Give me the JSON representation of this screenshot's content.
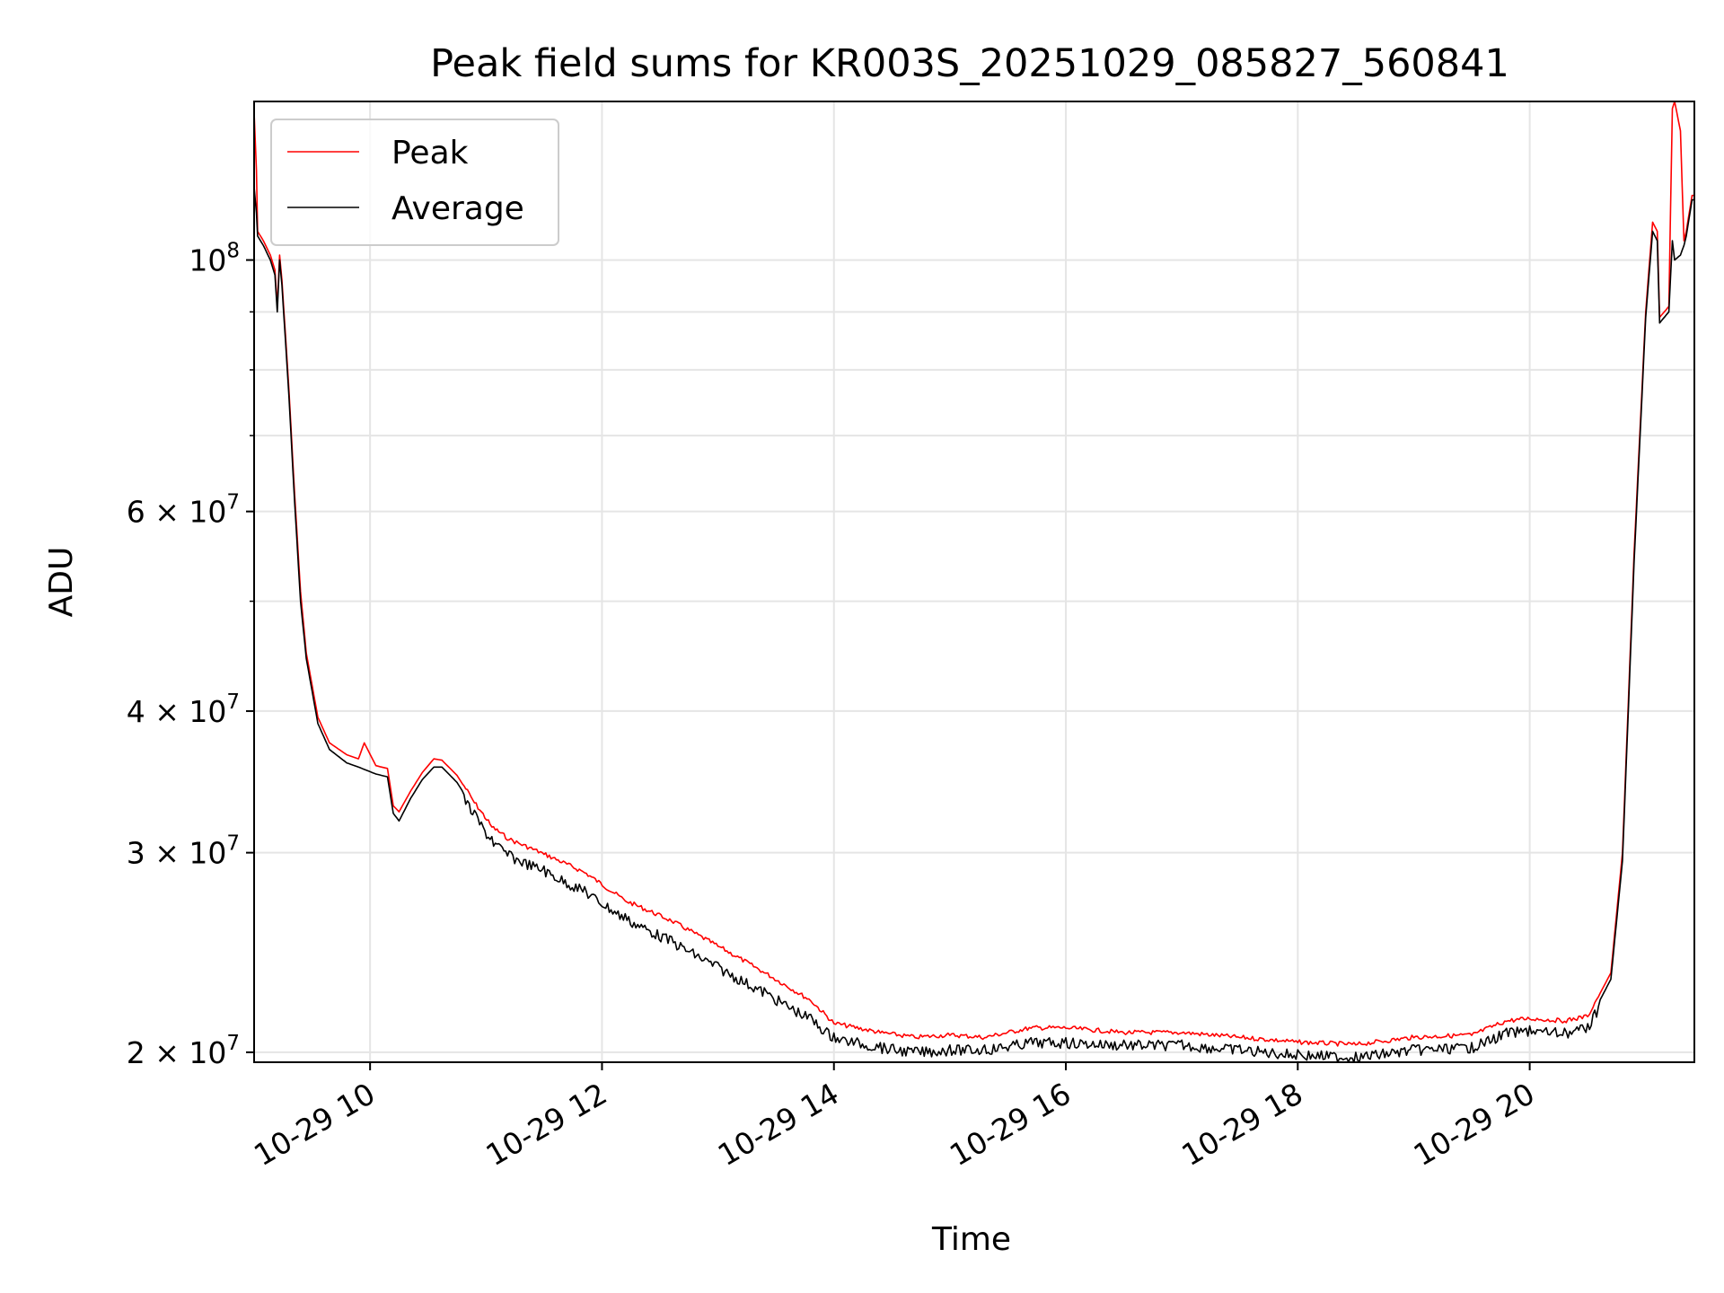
{
  "chart_data": {
    "type": "line",
    "title": "Peak field sums for KR003S_20251029_085827_560841",
    "xlabel": "Time",
    "ylabel": "ADU",
    "yscale": "log",
    "grid": true,
    "legend_position": "top-left",
    "xlim": [
      9.0,
      21.42
    ],
    "ylim": [
      19600000,
      138000000
    ],
    "x_ticks": [
      {
        "value": 10,
        "label": "10-29 10"
      },
      {
        "value": 12,
        "label": "10-29 12"
      },
      {
        "value": 14,
        "label": "10-29 14"
      },
      {
        "value": 16,
        "label": "10-29 16"
      },
      {
        "value": 18,
        "label": "10-29 18"
      },
      {
        "value": 20,
        "label": "10-29 20"
      }
    ],
    "y_major_ticks": [
      {
        "value": 100000000,
        "label": "10",
        "exp": "8",
        "style": "power"
      },
      {
        "value": 60000000,
        "label": "6 × 10",
        "exp": "7",
        "style": "mant"
      },
      {
        "value": 40000000,
        "label": "4 × 10",
        "exp": "7",
        "style": "mant"
      },
      {
        "value": 30000000,
        "label": "3 × 10",
        "exp": "7",
        "style": "mant"
      },
      {
        "value": 20000000,
        "label": "2 × 10",
        "exp": "7",
        "style": "mant"
      }
    ],
    "y_minor_ticks": [
      90000000,
      80000000,
      70000000,
      50000000
    ],
    "series": [
      {
        "name": "Peak",
        "color": "#ff0000",
        "points": [
          [
            9.0,
            135000000
          ],
          [
            9.02,
            120000000
          ],
          [
            9.03,
            106000000
          ],
          [
            9.08,
            104000000
          ],
          [
            9.14,
            101000000
          ],
          [
            9.18,
            98000000
          ],
          [
            9.2,
            91000000
          ],
          [
            9.22,
            101000000
          ],
          [
            9.24,
            96000000
          ],
          [
            9.3,
            77000000
          ],
          [
            9.35,
            62000000
          ],
          [
            9.4,
            51000000
          ],
          [
            9.45,
            45000000
          ],
          [
            9.55,
            39500000
          ],
          [
            9.65,
            37500000
          ],
          [
            9.8,
            36600000
          ],
          [
            9.9,
            36300000
          ],
          [
            9.95,
            37500000
          ],
          [
            10.05,
            35800000
          ],
          [
            10.15,
            35600000
          ],
          [
            10.2,
            33000000
          ],
          [
            10.25,
            32600000
          ],
          [
            10.35,
            34000000
          ],
          [
            10.45,
            35300000
          ],
          [
            10.55,
            36300000
          ],
          [
            10.62,
            36200000
          ],
          [
            10.75,
            35100000
          ],
          [
            10.9,
            33200000
          ],
          [
            11.05,
            31600000
          ],
          [
            11.2,
            30800000
          ],
          [
            11.5,
            29900000
          ],
          [
            11.85,
            28800000
          ],
          [
            12.2,
            27200000
          ],
          [
            12.6,
            26100000
          ],
          [
            13.0,
            24800000
          ],
          [
            13.4,
            23500000
          ],
          [
            13.8,
            22200000
          ],
          [
            14.0,
            21200000
          ],
          [
            14.4,
            20800000
          ],
          [
            14.7,
            20600000
          ],
          [
            15.0,
            20700000
          ],
          [
            15.3,
            20600000
          ],
          [
            15.7,
            21000000
          ],
          [
            16.0,
            21000000
          ],
          [
            16.5,
            20800000
          ],
          [
            17.0,
            20800000
          ],
          [
            17.5,
            20600000
          ],
          [
            18.0,
            20400000
          ],
          [
            18.5,
            20300000
          ],
          [
            19.0,
            20600000
          ],
          [
            19.5,
            20700000
          ],
          [
            19.8,
            21300000
          ],
          [
            20.0,
            21400000
          ],
          [
            20.3,
            21300000
          ],
          [
            20.5,
            21500000
          ],
          [
            20.7,
            23500000
          ],
          [
            20.8,
            30000000
          ],
          [
            20.9,
            55000000
          ],
          [
            21.0,
            90000000
          ],
          [
            21.06,
            108000000
          ],
          [
            21.1,
            106000000
          ],
          [
            21.12,
            89000000
          ],
          [
            21.2,
            91000000
          ],
          [
            21.23,
            136000000
          ],
          [
            21.25,
            138000000
          ],
          [
            21.3,
            130000000
          ],
          [
            21.33,
            104000000
          ],
          [
            21.35,
            106000000
          ],
          [
            21.4,
            114000000
          ],
          [
            21.42,
            114000000
          ]
        ]
      },
      {
        "name": "Average",
        "color": "#000000",
        "points": [
          [
            9.0,
            116000000
          ],
          [
            9.02,
            110000000
          ],
          [
            9.03,
            105000000
          ],
          [
            9.08,
            103000000
          ],
          [
            9.14,
            100000000
          ],
          [
            9.18,
            97000000
          ],
          [
            9.2,
            90000000
          ],
          [
            9.22,
            100000000
          ],
          [
            9.24,
            95000000
          ],
          [
            9.3,
            76000000
          ],
          [
            9.35,
            61000000
          ],
          [
            9.4,
            50000000
          ],
          [
            9.45,
            44500000
          ],
          [
            9.55,
            39000000
          ],
          [
            9.65,
            37000000
          ],
          [
            9.8,
            36000000
          ],
          [
            9.9,
            35700000
          ],
          [
            10.05,
            35200000
          ],
          [
            10.15,
            35000000
          ],
          [
            10.2,
            32500000
          ],
          [
            10.25,
            32000000
          ],
          [
            10.35,
            33500000
          ],
          [
            10.45,
            34800000
          ],
          [
            10.55,
            35700000
          ],
          [
            10.62,
            35700000
          ],
          [
            10.75,
            34600000
          ],
          [
            10.9,
            32700000
          ],
          [
            11.05,
            31000000
          ],
          [
            11.2,
            30100000
          ],
          [
            11.5,
            29200000
          ],
          [
            11.85,
            28000000
          ],
          [
            12.2,
            26500000
          ],
          [
            12.6,
            25300000
          ],
          [
            13.0,
            24000000
          ],
          [
            13.4,
            22800000
          ],
          [
            13.8,
            21600000
          ],
          [
            14.0,
            20800000
          ],
          [
            14.4,
            20400000
          ],
          [
            14.7,
            20200000
          ],
          [
            15.0,
            20300000
          ],
          [
            15.3,
            20300000
          ],
          [
            15.7,
            20600000
          ],
          [
            16.0,
            20600000
          ],
          [
            16.5,
            20500000
          ],
          [
            17.0,
            20500000
          ],
          [
            17.5,
            20300000
          ],
          [
            18.0,
            20100000
          ],
          [
            18.5,
            20000000
          ],
          [
            19.0,
            20300000
          ],
          [
            19.5,
            20400000
          ],
          [
            19.8,
            21000000
          ],
          [
            20.0,
            21100000
          ],
          [
            20.3,
            21000000
          ],
          [
            20.5,
            21200000
          ],
          [
            20.7,
            23200000
          ],
          [
            20.8,
            29500000
          ],
          [
            20.9,
            54000000
          ],
          [
            21.0,
            89000000
          ],
          [
            21.06,
            106000000
          ],
          [
            21.1,
            104000000
          ],
          [
            21.12,
            88000000
          ],
          [
            21.2,
            90000000
          ],
          [
            21.23,
            104000000
          ],
          [
            21.25,
            100000000
          ],
          [
            21.3,
            101000000
          ],
          [
            21.33,
            103000000
          ],
          [
            21.35,
            105000000
          ],
          [
            21.4,
            113000000
          ],
          [
            21.42,
            113000000
          ]
        ]
      }
    ]
  }
}
